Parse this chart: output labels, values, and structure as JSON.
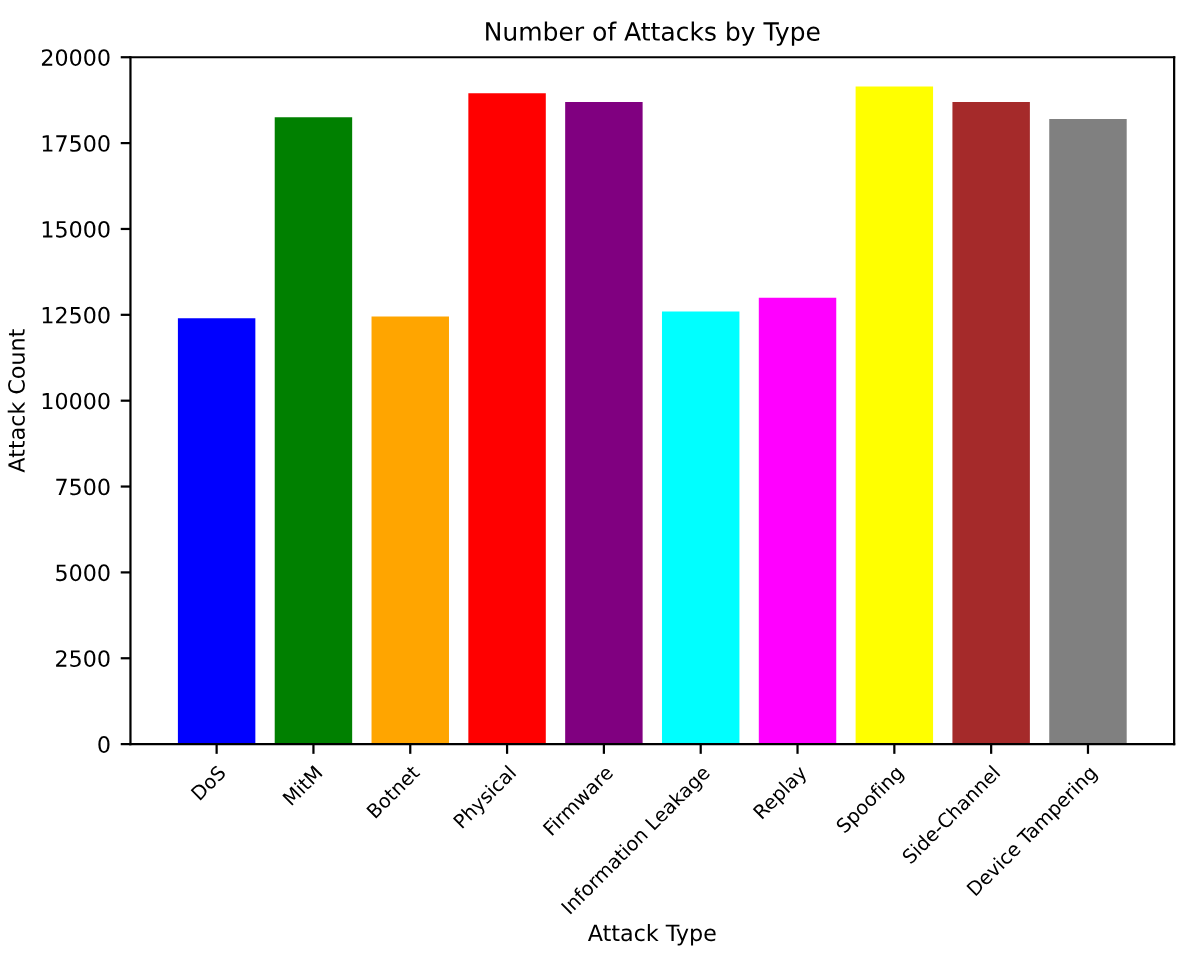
{
  "chart_data": {
    "type": "bar",
    "title": "Number of Attacks by Type",
    "xlabel": "Attack Type",
    "ylabel": "Attack Count",
    "categories": [
      "DoS",
      "MitM",
      "Botnet",
      "Physical",
      "Firmware",
      "Information Leakage",
      "Replay",
      "Spoofing",
      "Side-Channel",
      "Device Tampering"
    ],
    "values": [
      12400,
      18250,
      12450,
      18950,
      18700,
      12600,
      13000,
      19150,
      18700,
      18200
    ],
    "colors": [
      "#0000ff",
      "#008000",
      "#ffa500",
      "#ff0000",
      "#800080",
      "#00ffff",
      "#ff00ff",
      "#ffff00",
      "#a52a2a",
      "#808080"
    ],
    "ylim": [
      0,
      20000
    ],
    "yticks": [
      0,
      2500,
      5000,
      7500,
      10000,
      12500,
      15000,
      17500,
      20000
    ],
    "grid": false
  }
}
